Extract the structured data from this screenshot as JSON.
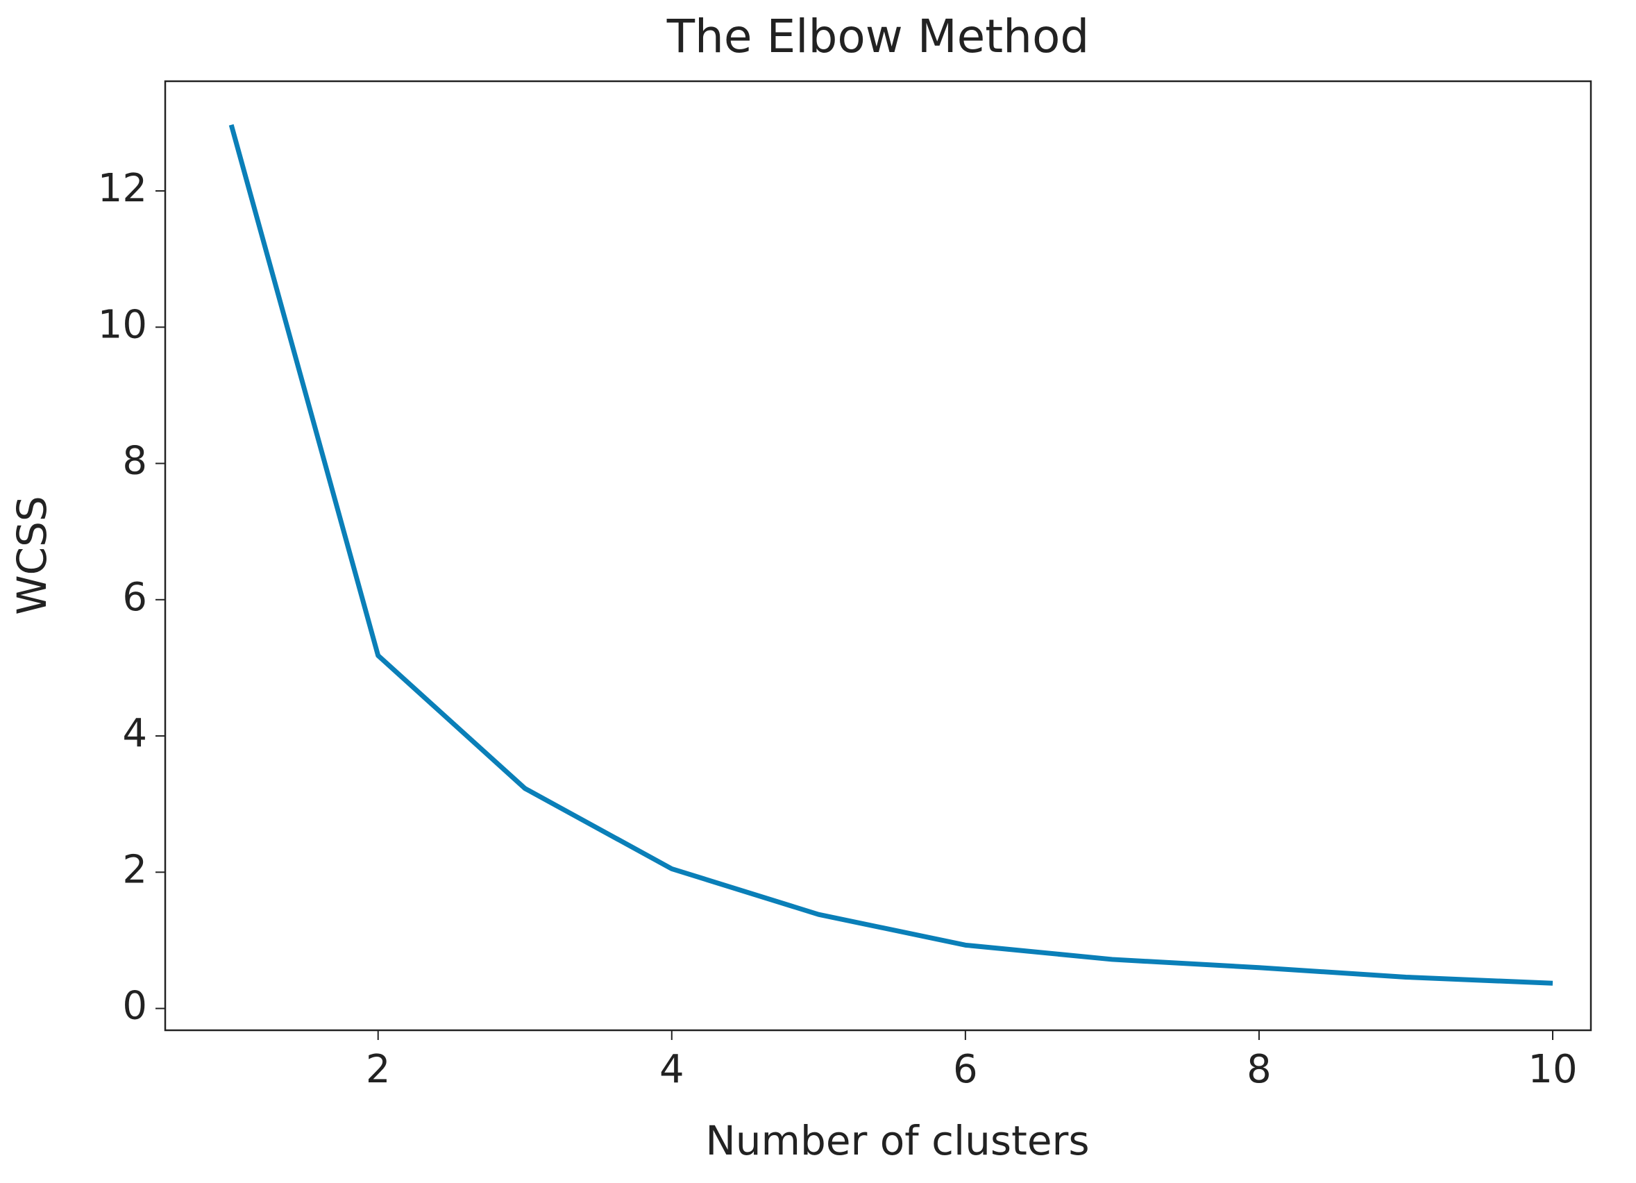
{
  "chart_data": {
    "type": "line",
    "title": "The Elbow Method",
    "x_label": "Number of clusters",
    "y_label": "WCSS",
    "x": [
      1,
      2,
      3,
      4,
      5,
      6,
      7,
      8,
      9,
      10
    ],
    "series": [
      {
        "name": "WCSS",
        "color": "#0a7fb8",
        "values": [
          12.97,
          5.18,
          3.23,
          2.05,
          1.38,
          0.93,
          0.72,
          0.6,
          0.46,
          0.37
        ]
      }
    ],
    "xlim": [
      0.55,
      10.26
    ],
    "ylim": [
      -0.32,
      13.61
    ],
    "xticks": [
      2,
      4,
      6,
      8,
      10
    ],
    "yticks": [
      0,
      2,
      4,
      6,
      8,
      10,
      12
    ]
  }
}
